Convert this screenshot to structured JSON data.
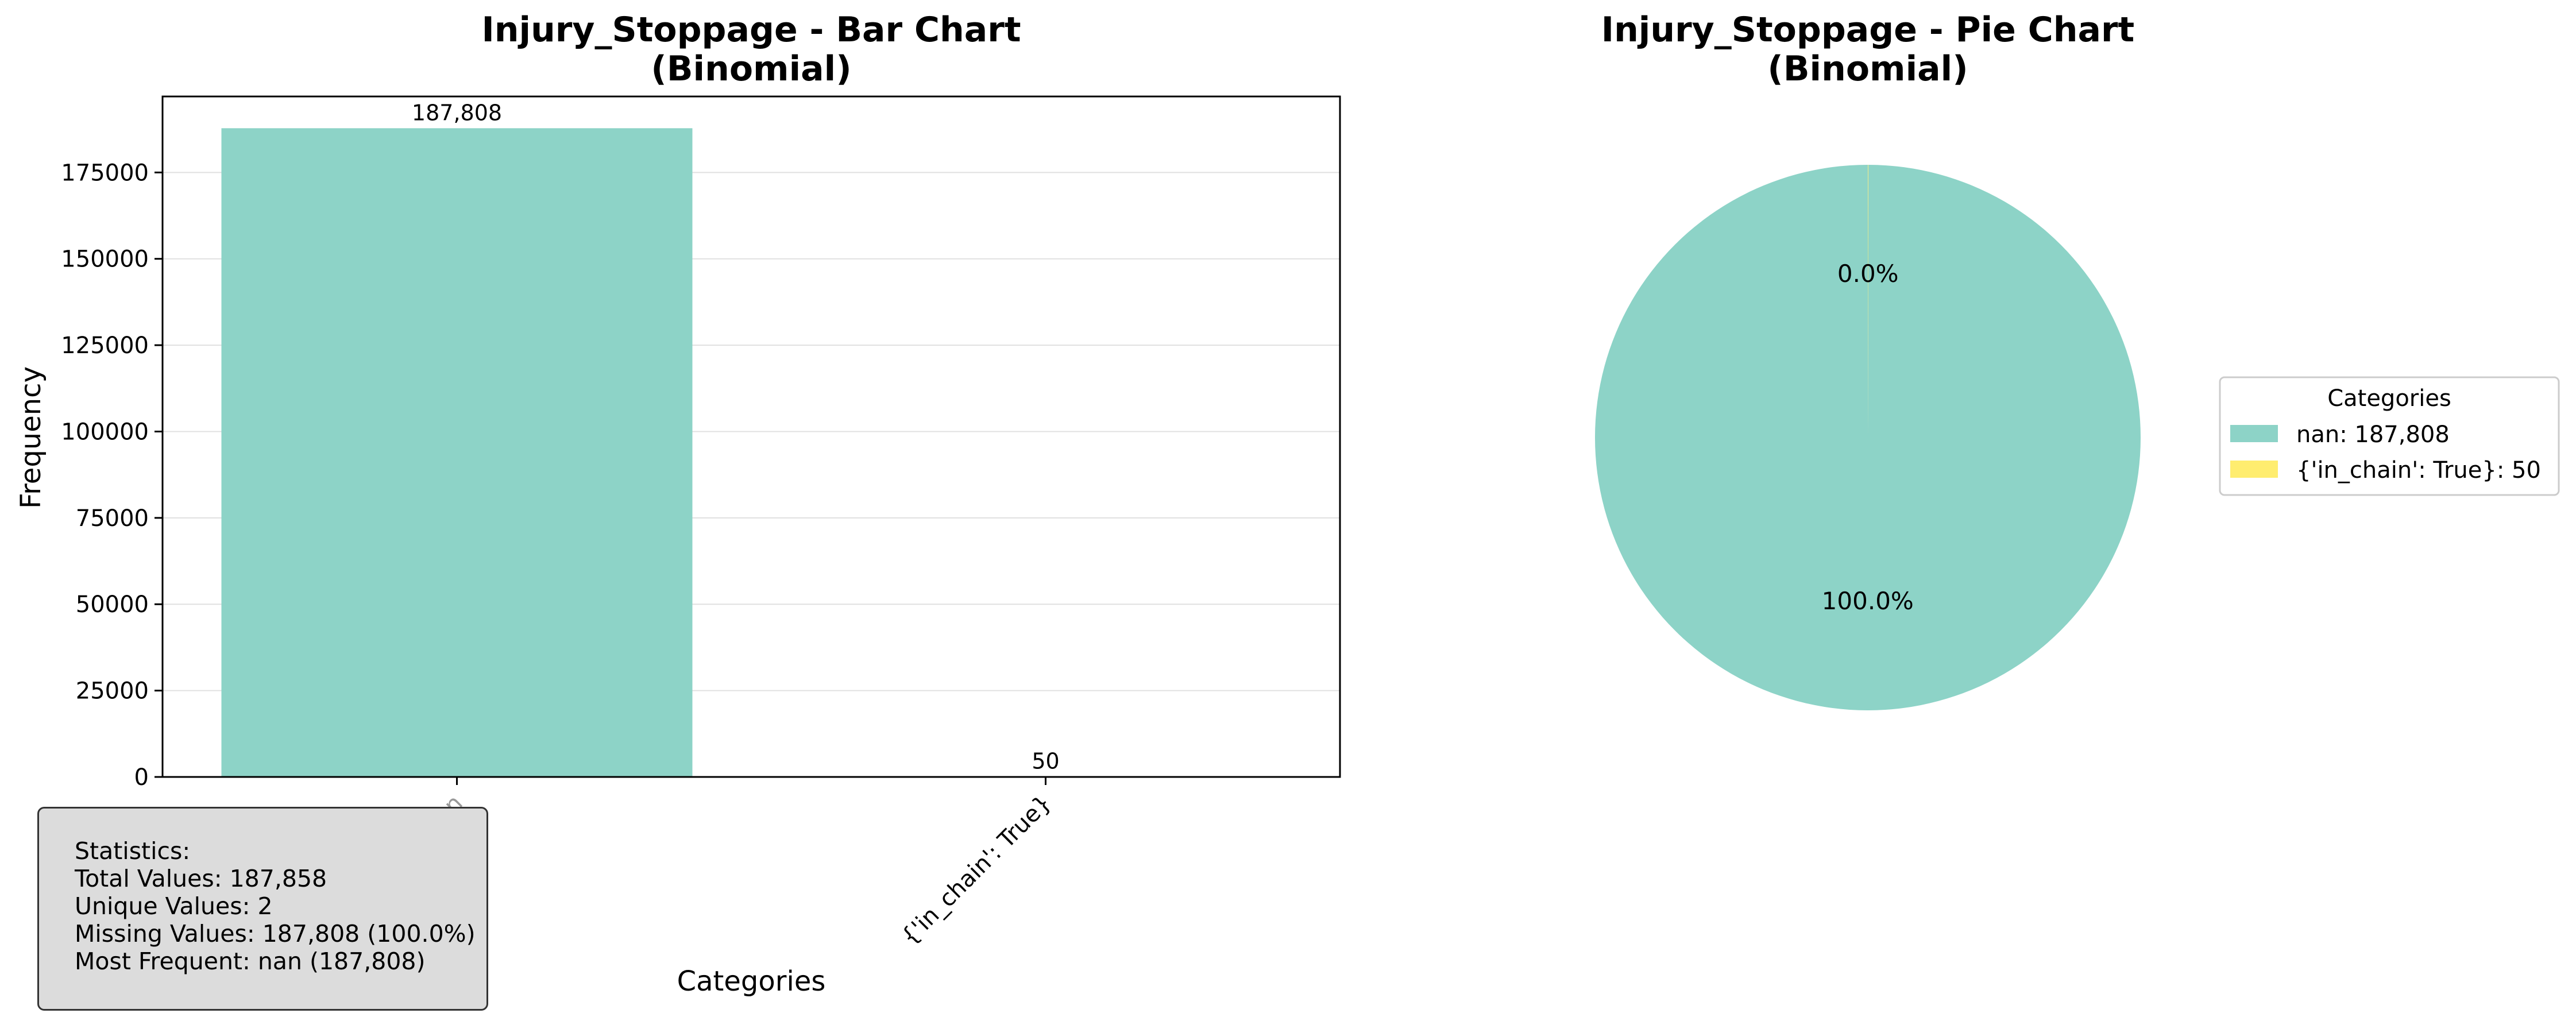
{
  "colors": {
    "nan": "#8dd3c7",
    "in_chain": "#ffed6f",
    "stats_bg": "#dcdcdc",
    "grid": "#e0e0e0"
  },
  "chart_data": [
    {
      "type": "bar",
      "title": "Injury_Stoppage - Bar Chart\n(Binomial)",
      "title_lines": [
        "Injury_Stoppage - Bar Chart",
        "(Binomial)"
      ],
      "xlabel": "Categories",
      "ylabel": "Frequency",
      "categories": [
        "nan",
        "{'in_chain': True}"
      ],
      "values": [
        187808,
        50
      ],
      "data_labels": [
        "187,808",
        "50"
      ],
      "ylim": [
        0,
        197000
      ],
      "yticks": [
        0,
        25000,
        50000,
        75000,
        100000,
        125000,
        150000,
        175000
      ],
      "ytick_labels": [
        "0",
        "25000",
        "50000",
        "75000",
        "100000",
        "125000",
        "150000",
        "175000"
      ],
      "grid": "y-axis on",
      "legend": "none"
    },
    {
      "type": "pie",
      "title": "Injury_Stoppage - Pie Chart\n(Binomial)",
      "title_lines": [
        "Injury_Stoppage - Pie Chart",
        "(Binomial)"
      ],
      "labels": [
        "nan",
        "{'in_chain': True}"
      ],
      "values": [
        187808,
        50
      ],
      "percent_labels": [
        "100.0%",
        "0.0%"
      ],
      "legend_title": "Categories",
      "legend_entries": [
        "nan: 187,808",
        "{'in_chain': True}: 50"
      ],
      "legend_placement": "right"
    }
  ],
  "statistics": {
    "heading": "Statistics:",
    "total": "Total Values: 187,858",
    "unique": "Unique Values: 2",
    "missing": "Missing Values: 187,808 (100.0%)",
    "most_frequent": "Most Frequent: nan (187,808)"
  }
}
